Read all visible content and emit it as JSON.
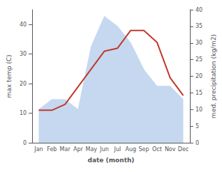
{
  "chart_data": {
    "type": "line",
    "xlabel": "date (month)",
    "ylabel": "max temp (C)",
    "y2label": "med. precipitation (kg/m2)",
    "categories": [
      "Jan",
      "Feb",
      "Mar",
      "Apr",
      "May",
      "Jun",
      "Jul",
      "Aug",
      "Sep",
      "Oct",
      "Nov",
      "Dec"
    ],
    "series": [
      {
        "type": "area",
        "axis": "y2",
        "color": "#c5d8f0",
        "values": [
          10,
          13,
          13,
          10,
          29,
          38,
          35,
          30,
          22,
          17,
          17,
          13
        ]
      },
      {
        "type": "line",
        "color": "#c0392b",
        "values": [
          11,
          11,
          13,
          19,
          25,
          31,
          32,
          38,
          38,
          34,
          22,
          16
        ]
      }
    ],
    "ylim": [
      0,
      45
    ],
    "yticks": [
      0,
      10,
      20,
      30,
      40
    ],
    "y2lim": [
      0,
      40
    ],
    "y2ticks": [
      0,
      5,
      10,
      15,
      20,
      25,
      30,
      35,
      40
    ],
    "grid": false
  }
}
